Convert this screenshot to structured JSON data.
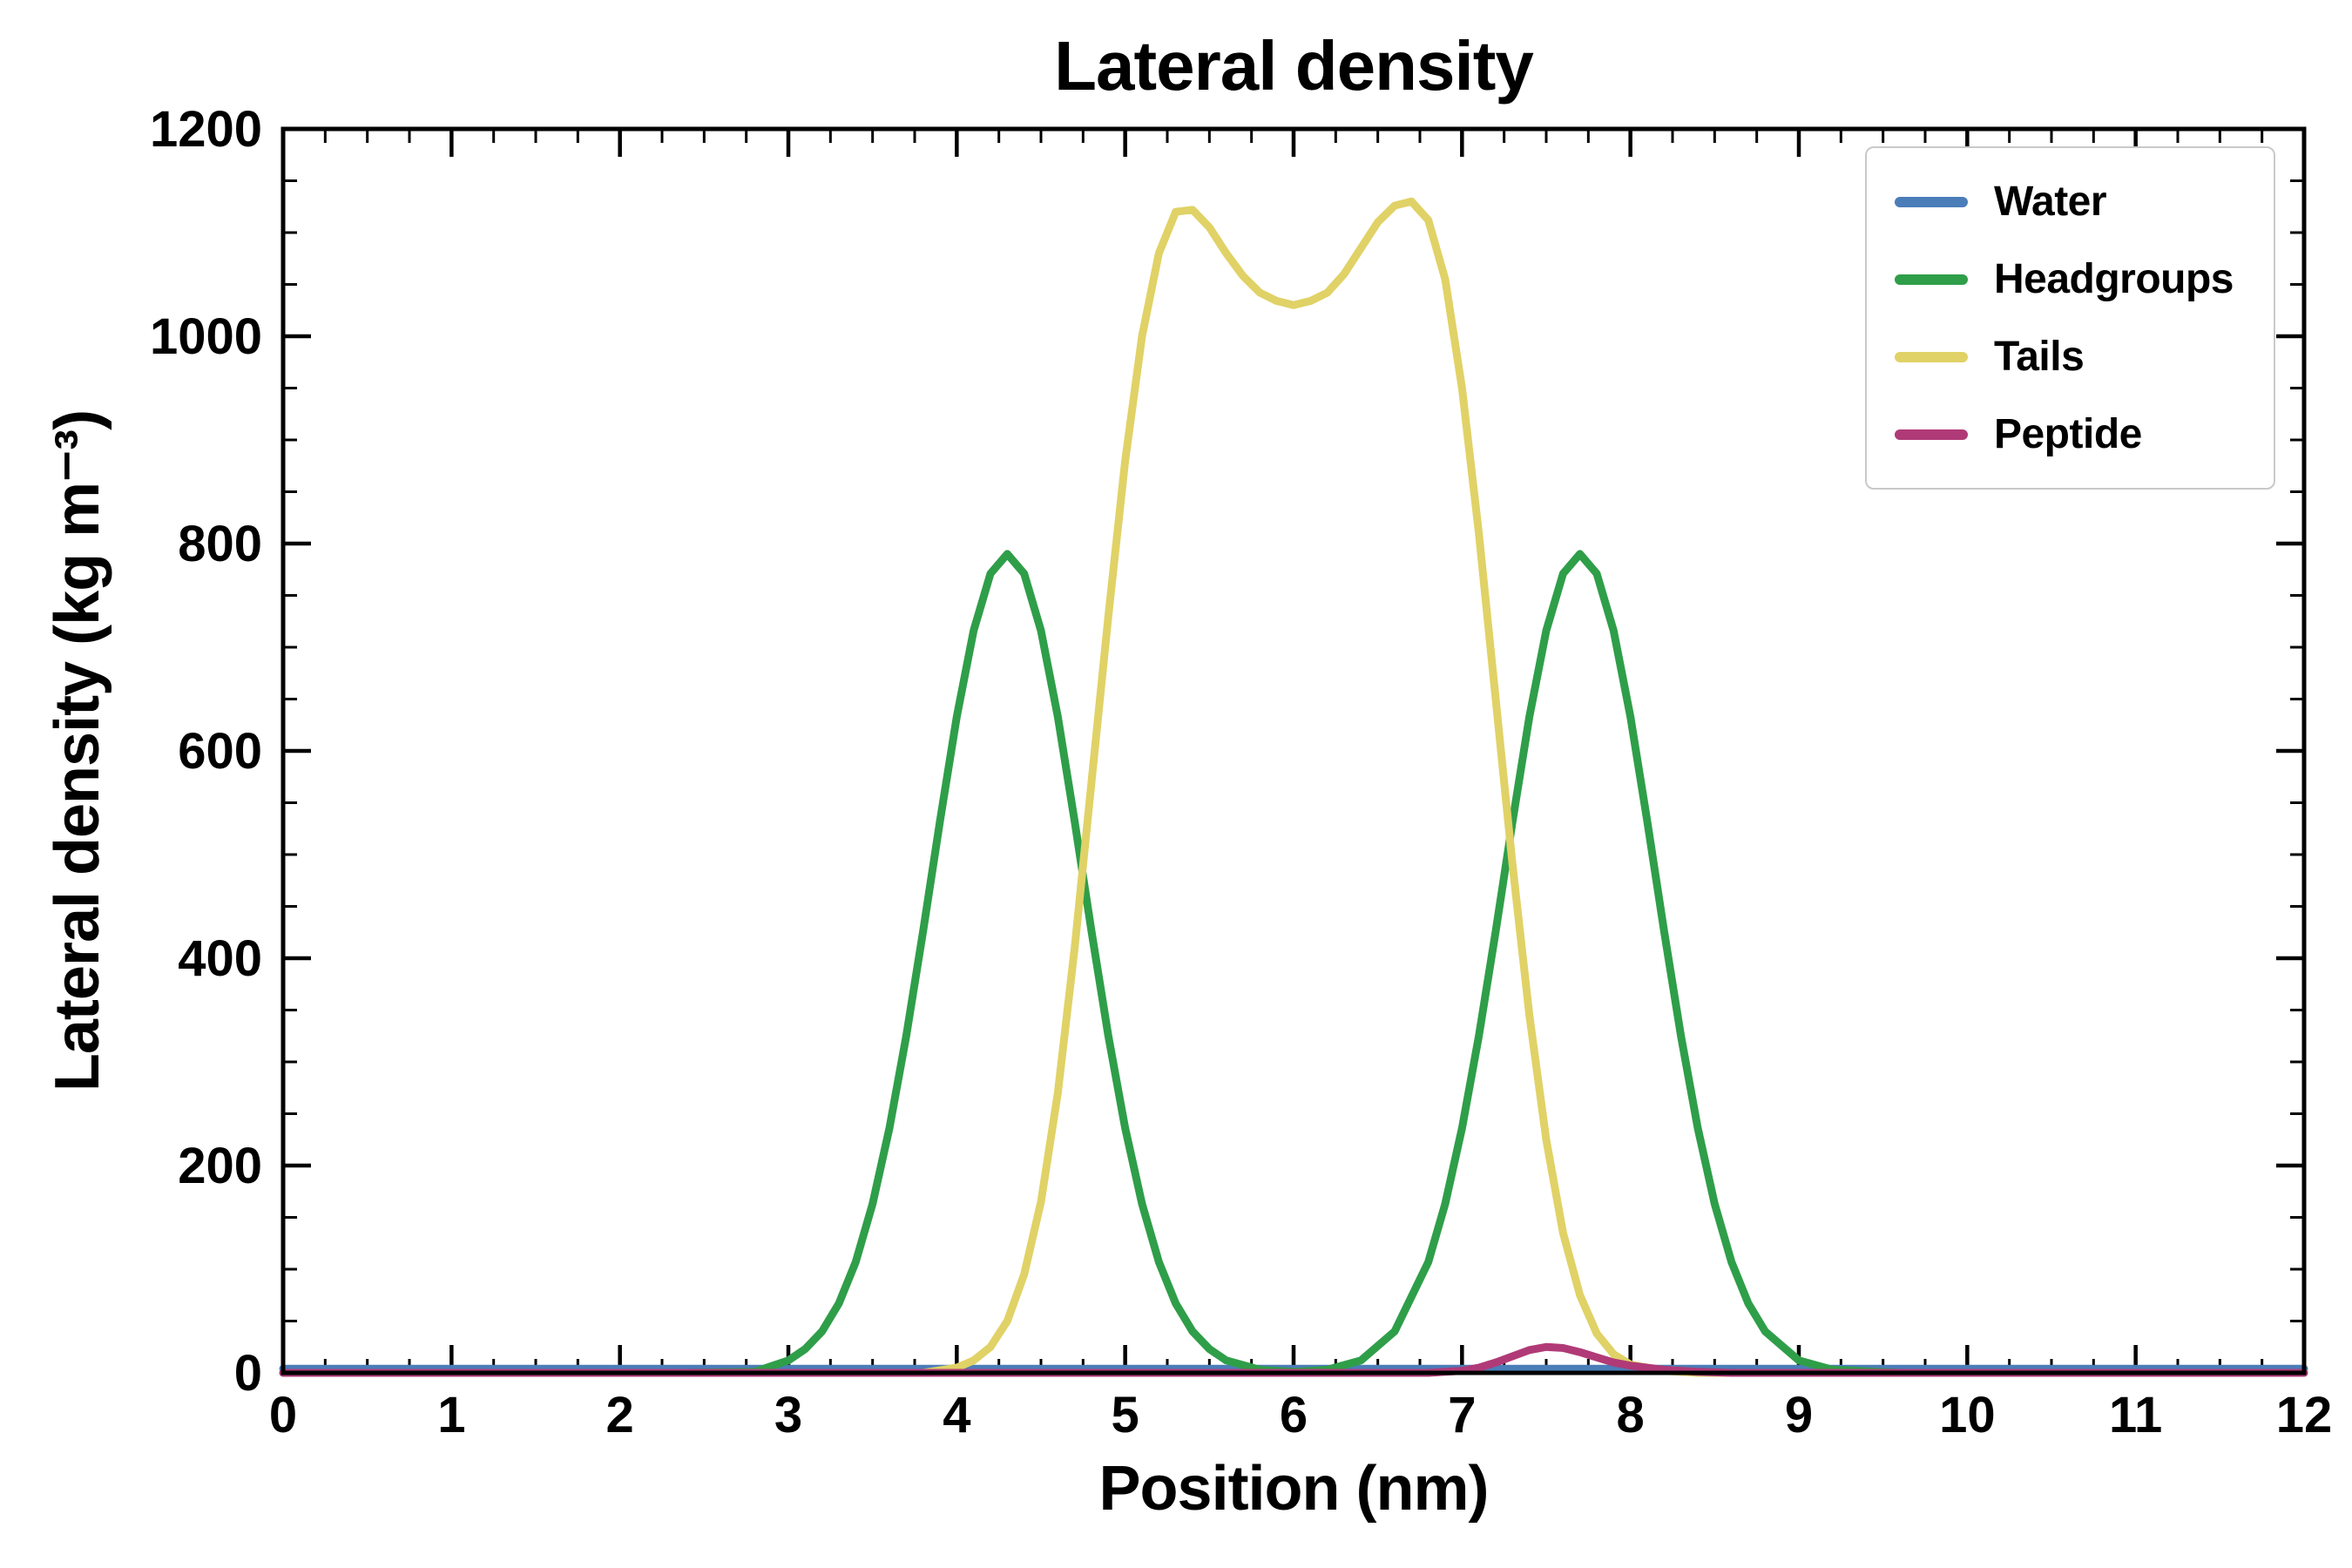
{
  "figure": {
    "background": "#ffffff"
  },
  "chart_data": {
    "type": "line",
    "title": "Lateral density",
    "xlabel": "Position (nm)",
    "ylabel": "Lateral density (kg m⁻³)",
    "xlim": [
      0,
      12
    ],
    "ylim": [
      0,
      1200
    ],
    "x_major_ticks": [
      0,
      1,
      2,
      3,
      4,
      5,
      6,
      7,
      8,
      9,
      10,
      11,
      12
    ],
    "x_minor_step": 0.25,
    "y_major_ticks": [
      0,
      200,
      400,
      600,
      800,
      1000,
      1200
    ],
    "y_minor_step": 50,
    "grid": false,
    "legend_position": "upper right",
    "axis_color": "#000000",
    "series": [
      {
        "name": "Water",
        "color": "#4b7db8",
        "x": [
          0,
          12
        ],
        "y": [
          4,
          4
        ]
      },
      {
        "name": "Headgroups",
        "color": "#2f9e49",
        "x": [
          0,
          2.4,
          2.8,
          3.0,
          3.1,
          3.2,
          3.3,
          3.4,
          3.5,
          3.6,
          3.7,
          3.8,
          3.9,
          4.0,
          4.1,
          4.2,
          4.3,
          4.4,
          4.5,
          4.6,
          4.7,
          4.8,
          4.9,
          5.0,
          5.1,
          5.2,
          5.3,
          5.4,
          5.5,
          5.6,
          5.8,
          6.0,
          6.2,
          6.4,
          6.6,
          6.8,
          6.9,
          7.0,
          7.1,
          7.2,
          7.3,
          7.4,
          7.5,
          7.6,
          7.7,
          7.8,
          7.9,
          8.0,
          8.1,
          8.2,
          8.3,
          8.4,
          8.5,
          8.6,
          8.7,
          8.8,
          9.0,
          9.2,
          9.6,
          12
        ],
        "y": [
          0,
          0,
          1,
          12,
          23,
          40,
          67,
          107,
          163,
          236,
          325,
          426,
          532,
          633,
          716,
          771,
          790,
          771,
          716,
          633,
          532,
          426,
          325,
          236,
          163,
          107,
          67,
          40,
          23,
          12,
          3,
          1,
          3,
          12,
          40,
          107,
          163,
          236,
          325,
          426,
          532,
          633,
          716,
          771,
          790,
          771,
          716,
          633,
          532,
          426,
          325,
          236,
          163,
          107,
          67,
          40,
          12,
          3,
          0,
          0
        ]
      },
      {
        "name": "Tails",
        "color": "#e0d266",
        "x": [
          0,
          3.8,
          4.0,
          4.1,
          4.2,
          4.3,
          4.4,
          4.5,
          4.6,
          4.7,
          4.8,
          4.9,
          5.0,
          5.1,
          5.2,
          5.3,
          5.4,
          5.5,
          5.6,
          5.7,
          5.8,
          5.9,
          6.0,
          6.1,
          6.2,
          6.3,
          6.4,
          6.5,
          6.6,
          6.7,
          6.8,
          6.9,
          7.0,
          7.1,
          7.2,
          7.3,
          7.4,
          7.5,
          7.6,
          7.7,
          7.8,
          7.9,
          8.0,
          8.2,
          8.4,
          12
        ],
        "y": [
          0,
          0,
          5,
          12,
          25,
          50,
          95,
          165,
          270,
          410,
          570,
          730,
          880,
          1000,
          1080,
          1120,
          1122,
          1105,
          1080,
          1058,
          1042,
          1034,
          1030,
          1034,
          1042,
          1060,
          1085,
          1110,
          1126,
          1130,
          1112,
          1055,
          950,
          810,
          650,
          490,
          345,
          225,
          135,
          75,
          38,
          18,
          8,
          2,
          0,
          0
        ]
      },
      {
        "name": "Peptide",
        "color": "#b03a77",
        "x": [
          0,
          6.8,
          7.0,
          7.1,
          7.2,
          7.3,
          7.4,
          7.5,
          7.6,
          7.7,
          7.8,
          7.9,
          8.0,
          8.1,
          8.2,
          8.4,
          8.6,
          12
        ],
        "y": [
          0,
          0,
          2,
          5,
          10,
          16,
          22,
          25,
          24,
          20,
          15,
          10,
          7,
          5,
          3,
          1,
          0,
          0
        ]
      }
    ]
  }
}
